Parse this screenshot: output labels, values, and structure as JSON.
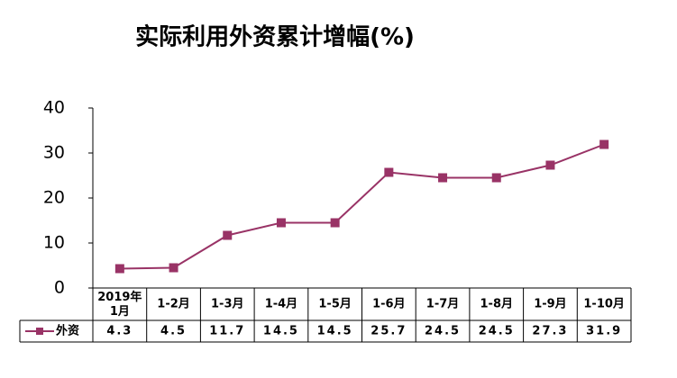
{
  "chart_data": {
    "type": "line",
    "title": "实际利用外资累计增幅(%)",
    "categories": [
      "2019年\n1月",
      "1-2月",
      "1-3月",
      "1-4月",
      "1-5月",
      "1-6月",
      "1-7月",
      "1-8月",
      "1-9月",
      "1-10月"
    ],
    "series": [
      {
        "name": "外资",
        "color": "#993366",
        "values": [
          4.3,
          4.5,
          11.7,
          14.5,
          14.5,
          25.7,
          24.5,
          24.5,
          27.3,
          31.9
        ]
      }
    ],
    "ylim": [
      0,
      40
    ],
    "yticks": [
      0,
      10,
      20,
      30,
      40
    ],
    "grid": false
  }
}
